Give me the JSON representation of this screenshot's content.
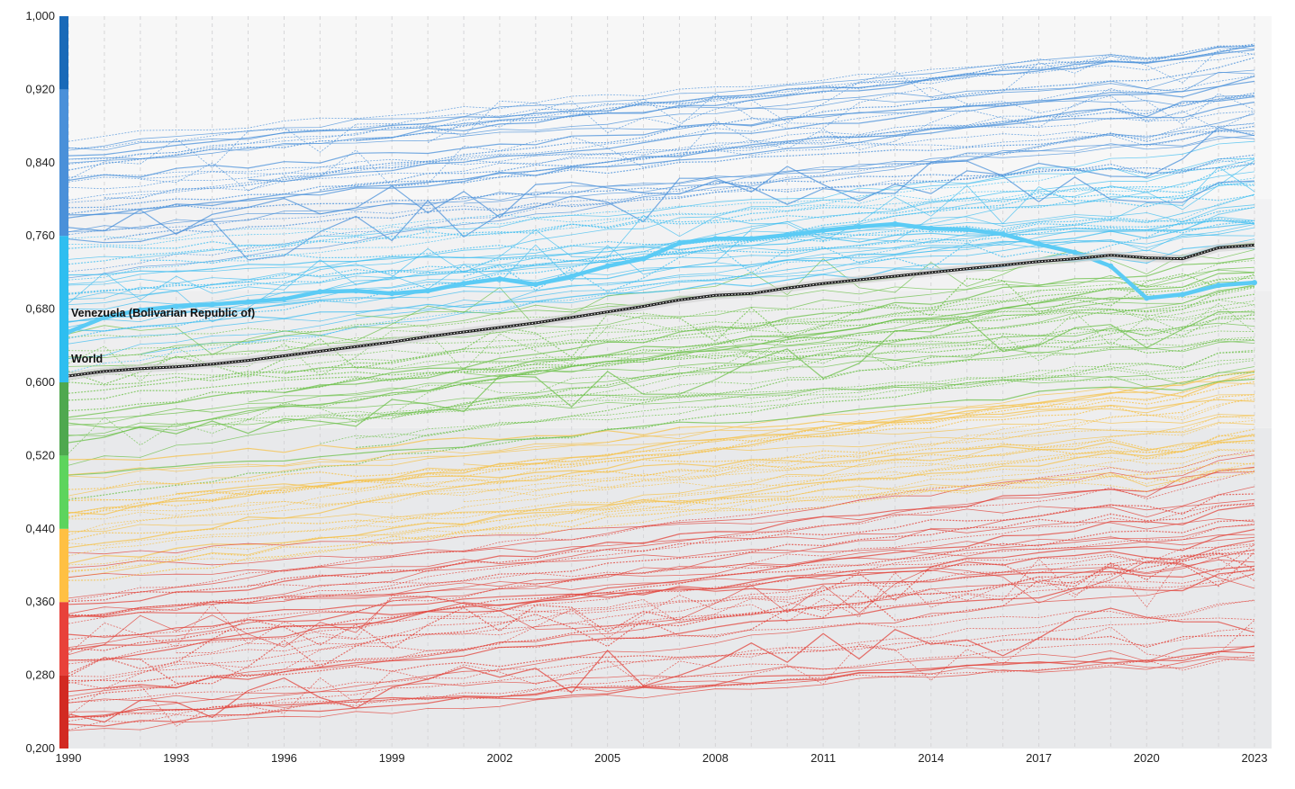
{
  "chart_data": {
    "type": "line",
    "title": "",
    "xlabel": "",
    "ylabel": "",
    "xlim": [
      1990,
      2023
    ],
    "ylim": [
      0.2,
      1.0
    ],
    "x_ticks": [
      1990,
      1993,
      1996,
      1999,
      2002,
      2005,
      2008,
      2011,
      2014,
      2017,
      2020,
      2023
    ],
    "y_ticks": [
      "0,200",
      "0,280",
      "0,360",
      "0,440",
      "0,520",
      "0,600",
      "0,680",
      "0,760",
      "0,840",
      "0,920",
      "1,000"
    ],
    "y_tick_values": [
      0.2,
      0.28,
      0.36,
      0.44,
      0.52,
      0.6,
      0.68,
      0.76,
      0.84,
      0.92,
      1.0
    ],
    "grid": "vertical dashed, yearly",
    "background_bands": [
      {
        "from": 0.2,
        "to": 0.55,
        "color": "#e8e9eb"
      },
      {
        "from": 0.55,
        "to": 0.7,
        "color": "#eeeeef"
      },
      {
        "from": 0.7,
        "to": 0.8,
        "color": "#f2f2f3"
      },
      {
        "from": 0.8,
        "to": 1.0,
        "color": "#f7f7f7"
      }
    ],
    "color_scale": [
      {
        "from": 0.2,
        "to": 0.28,
        "color": "#d22a22"
      },
      {
        "from": 0.28,
        "to": 0.36,
        "color": "#e8413a"
      },
      {
        "from": 0.36,
        "to": 0.44,
        "color": "#ffc043"
      },
      {
        "from": 0.44,
        "to": 0.52,
        "color": "#5dd45d"
      },
      {
        "from": 0.52,
        "to": 0.6,
        "color": "#4fa84f"
      },
      {
        "from": 0.6,
        "to": 0.76,
        "color": "#2ebef0"
      },
      {
        "from": 0.76,
        "to": 0.92,
        "color": "#4a90d9"
      },
      {
        "from": 0.92,
        "to": 1.0,
        "color": "#1a6ab8"
      }
    ],
    "series": [
      {
        "name": "Venezuela (Bolivarian Republic of)",
        "color": "#5bcbf5",
        "x": [
          1990,
          1991,
          1992,
          1993,
          1994,
          1995,
          1996,
          1997,
          1998,
          1999,
          2000,
          2001,
          2002,
          2003,
          2004,
          2005,
          2006,
          2007,
          2008,
          2009,
          2010,
          2011,
          2012,
          2013,
          2014,
          2015,
          2016,
          2017,
          2018,
          2019,
          2020,
          2021,
          2022,
          2023
        ],
        "values": [
          0.655,
          0.671,
          0.679,
          0.683,
          0.685,
          0.688,
          0.691,
          0.699,
          0.7,
          0.697,
          0.7,
          0.708,
          0.713,
          0.707,
          0.716,
          0.727,
          0.735,
          0.752,
          0.757,
          0.757,
          0.761,
          0.766,
          0.77,
          0.773,
          0.768,
          0.767,
          0.762,
          0.751,
          0.742,
          0.727,
          0.692,
          0.696,
          0.706,
          0.709
        ]
      },
      {
        "name": "World",
        "color": "#222222",
        "x": [
          1990,
          1991,
          1992,
          1993,
          1994,
          1995,
          1996,
          1997,
          1998,
          1999,
          2000,
          2001,
          2002,
          2003,
          2004,
          2005,
          2006,
          2007,
          2008,
          2009,
          2010,
          2011,
          2012,
          2013,
          2014,
          2015,
          2016,
          2017,
          2018,
          2019,
          2020,
          2021,
          2022,
          2023
        ],
        "values": [
          0.607,
          0.612,
          0.615,
          0.617,
          0.62,
          0.624,
          0.629,
          0.634,
          0.639,
          0.644,
          0.65,
          0.655,
          0.66,
          0.665,
          0.671,
          0.677,
          0.683,
          0.69,
          0.695,
          0.697,
          0.703,
          0.708,
          0.712,
          0.716,
          0.72,
          0.724,
          0.728,
          0.732,
          0.735,
          0.739,
          0.736,
          0.735,
          0.747,
          0.75
        ]
      }
    ],
    "background_series_note": "Many additional unlabeled country lines colored by HDI level"
  }
}
